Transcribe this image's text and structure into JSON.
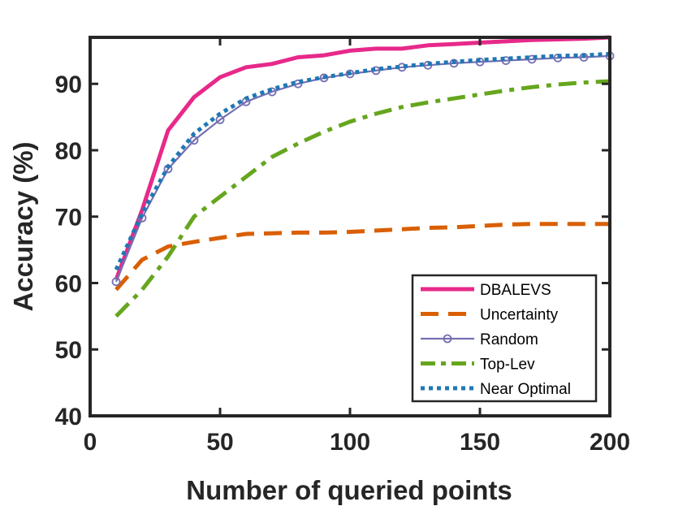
{
  "chart_data": {
    "type": "line",
    "title": "",
    "xlabel": "Number of queried points",
    "ylabel": "Accuracy (%)",
    "xlim": [
      0,
      200
    ],
    "ylim": [
      40,
      97
    ],
    "xticks": [
      0,
      50,
      100,
      150,
      200
    ],
    "yticks": [
      40,
      50,
      60,
      70,
      80,
      90
    ],
    "grid": false,
    "legend_position": "bottom-right",
    "series": [
      {
        "name": "DBALEVS",
        "color": "#e7298a",
        "dash": "solid",
        "marker": "none",
        "x": [
          10,
          20,
          30,
          40,
          50,
          60,
          70,
          80,
          90,
          100,
          110,
          120,
          130,
          140,
          150,
          160,
          170,
          180,
          190,
          200
        ],
        "y": [
          60.5,
          71,
          83,
          88,
          91,
          92.5,
          93,
          94,
          94.3,
          95,
          95.3,
          95.3,
          95.8,
          96,
          96.2,
          96.4,
          96.6,
          96.7,
          96.8,
          97
        ]
      },
      {
        "name": "Uncertainty",
        "color": "#d95f02",
        "dash": "dashed",
        "marker": "none",
        "x": [
          10,
          20,
          30,
          40,
          50,
          60,
          70,
          80,
          90,
          100,
          110,
          120,
          130,
          140,
          150,
          160,
          170,
          180,
          190,
          200
        ],
        "y": [
          59,
          63.5,
          65.5,
          66.2,
          66.8,
          67.4,
          67.5,
          67.6,
          67.6,
          67.7,
          67.9,
          68.1,
          68.3,
          68.4,
          68.6,
          68.8,
          68.9,
          68.9,
          68.9,
          68.9
        ]
      },
      {
        "name": "Random",
        "color": "#7570b3",
        "dash": "solid",
        "marker": "circle",
        "x": [
          10,
          20,
          30,
          40,
          50,
          60,
          70,
          80,
          90,
          100,
          110,
          120,
          130,
          140,
          150,
          160,
          170,
          180,
          190,
          200
        ],
        "y": [
          60.2,
          69.8,
          77.2,
          81.5,
          84.6,
          87.3,
          88.8,
          90.0,
          90.9,
          91.5,
          92.0,
          92.5,
          92.8,
          93.1,
          93.3,
          93.5,
          93.7,
          93.9,
          94.0,
          94.2
        ]
      },
      {
        "name": "Top-Lev",
        "color": "#66a61e",
        "dash": "dashdot",
        "marker": "none",
        "x": [
          10,
          20,
          30,
          40,
          50,
          60,
          70,
          80,
          90,
          100,
          110,
          120,
          130,
          140,
          150,
          160,
          170,
          180,
          190,
          200
        ],
        "y": [
          55,
          59,
          64,
          70,
          73,
          76,
          79,
          81,
          82.8,
          84.3,
          85.5,
          86.5,
          87.2,
          87.8,
          88.4,
          89.0,
          89.5,
          89.9,
          90.2,
          90.4
        ]
      },
      {
        "name": "Near Optimal",
        "color": "#1f78b4",
        "dash": "dotted",
        "marker": "none",
        "x": [
          10,
          20,
          30,
          40,
          50,
          60,
          70,
          80,
          90,
          100,
          110,
          120,
          130,
          140,
          150,
          160,
          170,
          180,
          190,
          200
        ],
        "y": [
          62,
          70.5,
          77.5,
          82.5,
          85.5,
          87.8,
          89.2,
          90.3,
          91.0,
          91.6,
          92.2,
          92.6,
          93.0,
          93.3,
          93.6,
          93.8,
          94.0,
          94.2,
          94.3,
          94.5
        ]
      }
    ]
  }
}
